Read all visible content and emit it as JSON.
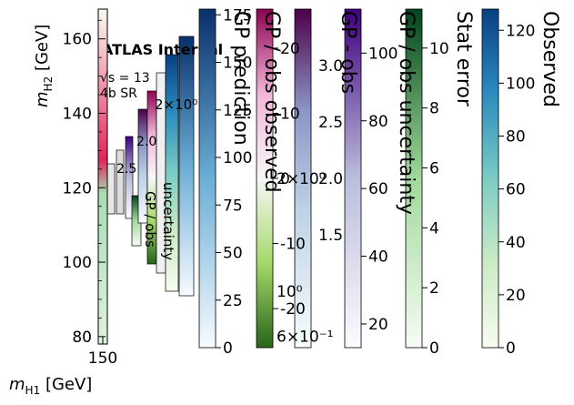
{
  "chart_data": {
    "type": "heatmap",
    "main": {
      "xlabel": "m_{H1} [GeV]",
      "ylabel": "m_{H2} [GeV]",
      "x_ticks": [
        "150"
      ],
      "y_ticks": [
        80,
        100,
        120,
        140,
        160
      ],
      "ylim": [
        78,
        168
      ],
      "annotation_energy": "√s = 13",
      "annotation_region": "4b SR"
    },
    "colorbars": [
      {
        "id": "observed",
        "label": "Observed",
        "cmap": "GnBu",
        "ticks": [
          0,
          20,
          40,
          60,
          80,
          100,
          120
        ],
        "vmin": 0,
        "vmax": 128
      },
      {
        "id": "stat-error",
        "label": "Stat error",
        "cmap": "Greens",
        "ticks": [
          0,
          2,
          4,
          6,
          8,
          10
        ],
        "vmin": 0,
        "vmax": 11.3
      },
      {
        "id": "gp-obs-uncertainty",
        "label": "GP / obs uncertainty",
        "cmap": "Purples",
        "ticks": [
          20,
          40,
          60,
          80,
          100
        ],
        "vmin": 13,
        "vmax": 113
      },
      {
        "id": "gp-minus-obs",
        "label": "GP - obs",
        "cmap": "BuPu",
        "ticks_text": [
          "6×10⁻¹",
          "10⁰",
          "2×10⁰"
        ],
        "minor_ticks": [
          "1.5",
          "2.0",
          "2.5",
          "3.0"
        ],
        "log": true
      },
      {
        "id": "gp-obs-observed",
        "label": "GP / obs observed",
        "cmap": "PiYG",
        "ticks": [
          -20,
          -10,
          0,
          10,
          20
        ]
      },
      {
        "id": "gp-prediction",
        "label": "GP prediction",
        "cmap": "Blues",
        "ticks": [
          0,
          25,
          50,
          75,
          100,
          125,
          150,
          175
        ]
      }
    ]
  }
}
